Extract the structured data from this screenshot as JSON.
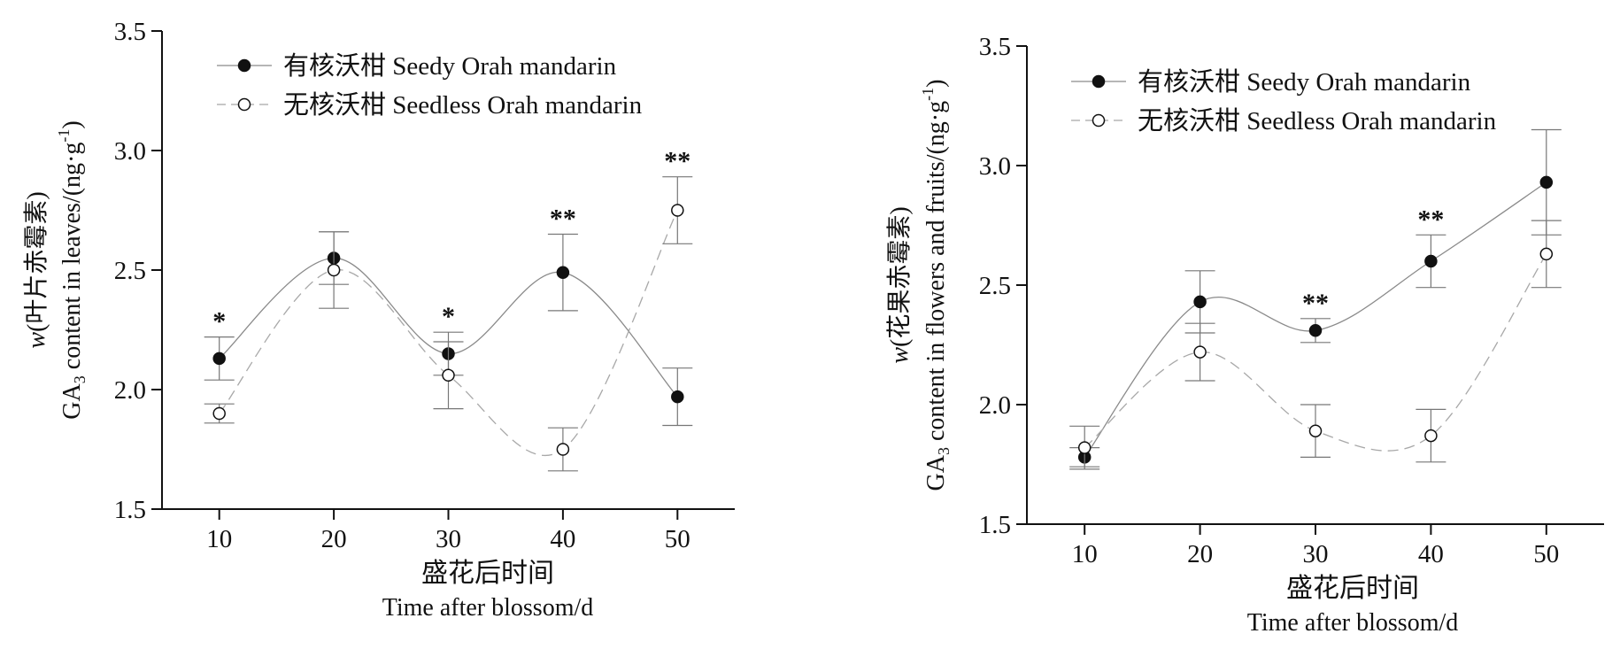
{
  "legend": {
    "seedy": "有核沃柑 Seedy Orah mandarin",
    "seedless": "无核沃柑 Seedless Orah mandarin"
  },
  "chart_data": [
    {
      "type": "line",
      "xlabel_cn": "盛花后时间",
      "xlabel_en": "Time after blossom/d",
      "ylabel_cn": "w(叶片赤霉素)",
      "ylabel_en_prefix": "GA",
      "ylabel_en_sub": "3",
      "ylabel_en_suffix": " content in leaves/(ng·g",
      "ylabel_sup": "-1",
      "ylabel_close": ")",
      "x": [
        10,
        20,
        30,
        40,
        50
      ],
      "xlim": [
        5,
        55
      ],
      "ylim": [
        1.5,
        3.5
      ],
      "yticks": [
        "1.5",
        "2.0",
        "2.5",
        "3.0",
        "3.5"
      ],
      "xticks": [
        "10",
        "20",
        "30",
        "40",
        "50"
      ],
      "legend_position": "top-left",
      "series": [
        {
          "name": "有核沃柑 Seedy Orah mandarin",
          "marker": "filled",
          "values": [
            2.13,
            2.55,
            2.15,
            2.49,
            1.97
          ],
          "errors": [
            0.09,
            0.11,
            0.09,
            0.16,
            0.12
          ]
        },
        {
          "name": "无核沃柑 Seedless Orah mandarin",
          "marker": "open",
          "values": [
            1.9,
            2.5,
            2.06,
            1.75,
            2.75
          ],
          "errors": [
            0.04,
            0.16,
            0.14,
            0.09,
            0.14
          ]
        }
      ],
      "significance": [
        "*",
        "",
        "*",
        "**",
        "**"
      ]
    },
    {
      "type": "line",
      "xlabel_cn": "盛花后时间",
      "xlabel_en": "Time after blossom/d",
      "ylabel_cn": "w(花果赤霉素)",
      "ylabel_en_prefix": "GA",
      "ylabel_en_sub": "3",
      "ylabel_en_suffix": " content in flowers and fruits/(ng·g",
      "ylabel_sup": "-1",
      "ylabel_close": ")",
      "x": [
        10,
        20,
        30,
        40,
        50
      ],
      "xlim": [
        5,
        55
      ],
      "ylim": [
        1.5,
        3.5
      ],
      "yticks": [
        "1.5",
        "2.0",
        "2.5",
        "3.0",
        "3.5"
      ],
      "xticks": [
        "10",
        "20",
        "30",
        "40",
        "50"
      ],
      "legend_position": "top-left",
      "series": [
        {
          "name": "有核沃柑 Seedy Orah mandarin",
          "marker": "filled",
          "values": [
            1.78,
            2.43,
            2.31,
            2.6,
            2.93
          ],
          "errors": [
            0.04,
            0.13,
            0.05,
            0.11,
            0.22
          ]
        },
        {
          "name": "无核沃柑 Seedless Orah mandarin",
          "marker": "open",
          "values": [
            1.82,
            2.22,
            1.89,
            1.87,
            2.63
          ],
          "errors": [
            0.09,
            0.12,
            0.11,
            0.11,
            0.14
          ]
        }
      ],
      "significance": [
        "",
        "",
        "**",
        "**",
        ""
      ]
    }
  ]
}
